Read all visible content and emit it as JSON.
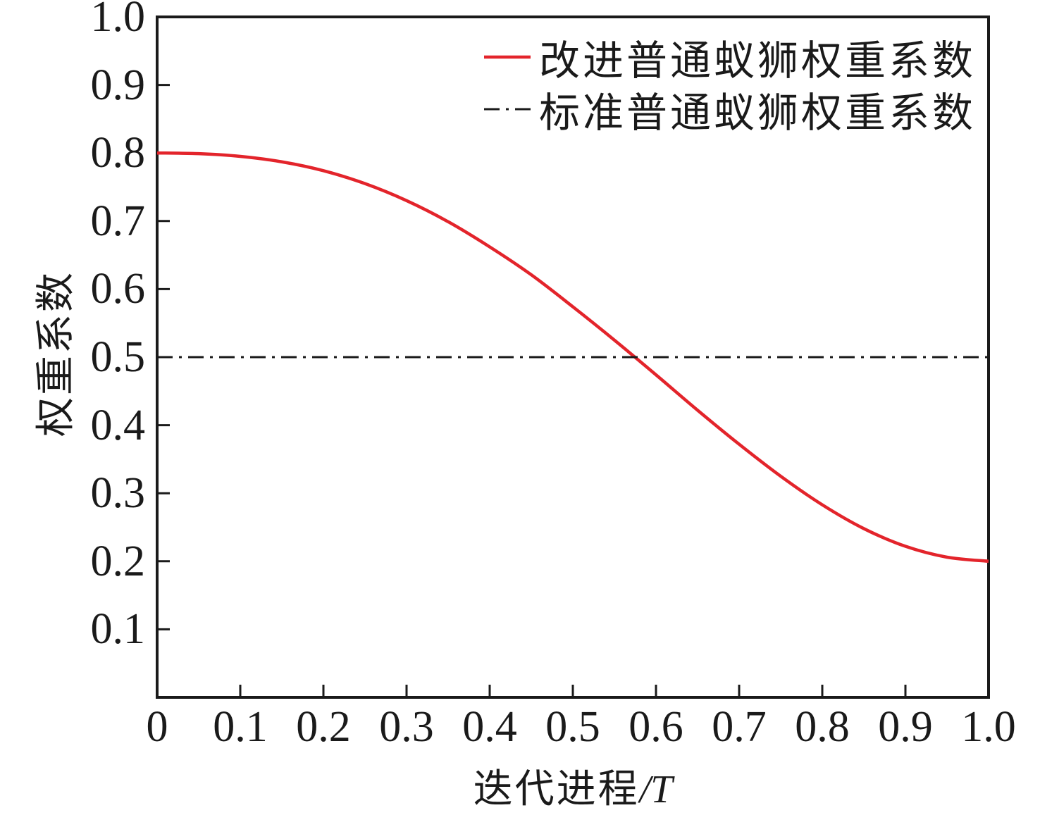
{
  "chart_data": {
    "type": "line",
    "title": "",
    "xlabel": "迭代进程/T",
    "xlabel_display": {
      "text": "迭代进程",
      "italic": "/T"
    },
    "ylabel": "权重系数",
    "xlim": [
      0,
      1.0
    ],
    "ylim": [
      0,
      1.0
    ],
    "grid": false,
    "legend_position": "upper-right-inside-no-frame",
    "x_ticks": {
      "values": [
        0,
        0.1,
        0.2,
        0.3,
        0.4,
        0.5,
        0.6,
        0.7,
        0.8,
        0.9,
        1.0
      ],
      "labels": [
        "0",
        "0.1",
        "0.2",
        "0.3",
        "0.4",
        "0.5",
        "0.6",
        "0.7",
        "0.8",
        "0.9",
        "1.0"
      ]
    },
    "y_ticks": {
      "values": [
        0.1,
        0.2,
        0.3,
        0.4,
        0.5,
        0.6,
        0.7,
        0.8,
        0.9,
        1.0
      ],
      "labels": [
        "0.1",
        "0.2",
        "0.3",
        "0.4",
        "0.5",
        "0.6",
        "0.7",
        "0.8",
        "0.9",
        "1.0"
      ]
    },
    "axis_color": "#1a1a1a",
    "series": [
      {
        "name": "改进普通蚁狮权重系数",
        "color": "#e3242b",
        "line_style": "solid",
        "line_width": 4.5,
        "x": [
          0,
          0.05,
          0.1,
          0.15,
          0.2,
          0.25,
          0.3,
          0.35,
          0.4,
          0.45,
          0.5,
          0.55,
          0.6,
          0.65,
          0.7,
          0.75,
          0.8,
          0.85,
          0.9,
          0.95,
          1.0
        ],
        "y": [
          0.8,
          0.799,
          0.795,
          0.787,
          0.774,
          0.755,
          0.73,
          0.699,
          0.662,
          0.621,
          0.574,
          0.525,
          0.474,
          0.422,
          0.372,
          0.325,
          0.283,
          0.248,
          0.222,
          0.206,
          0.2
        ]
      },
      {
        "name": "标准普通蚁狮权重系数",
        "color": "#1a1a1a",
        "line_style": "dashdot",
        "line_width": 3,
        "x": [
          0,
          1.0
        ],
        "y": [
          0.5,
          0.5
        ]
      }
    ]
  }
}
